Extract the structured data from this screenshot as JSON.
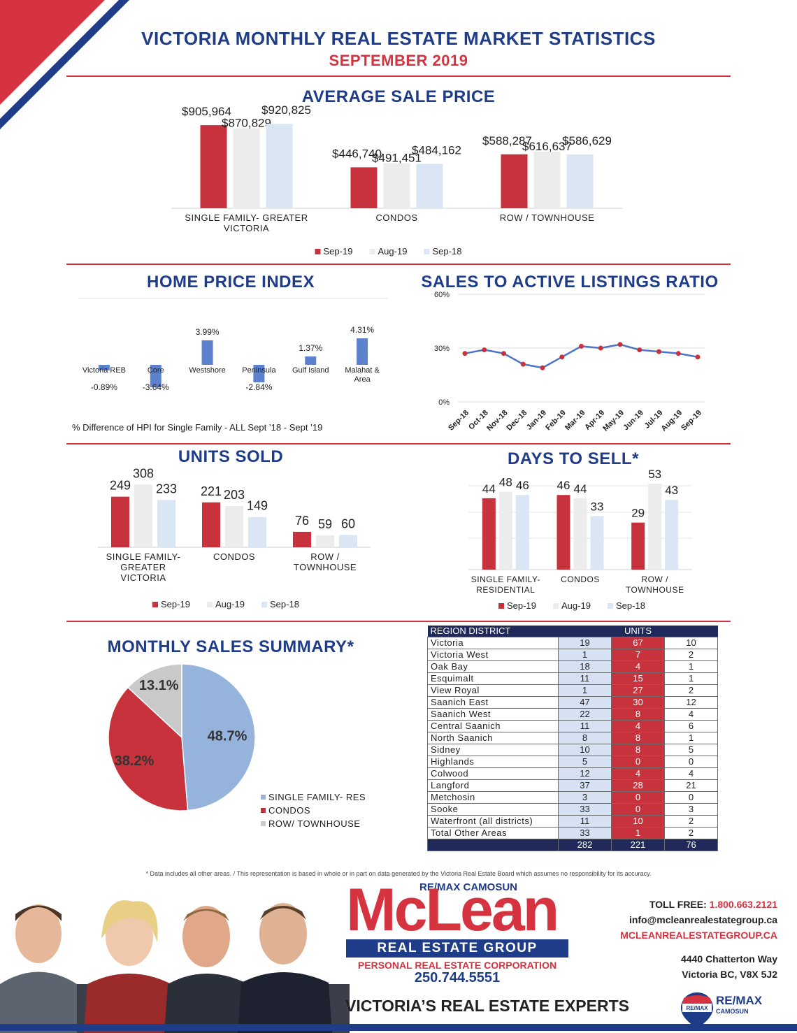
{
  "colors": {
    "navy": "#1f3c88",
    "red": "#d4333f",
    "sep19": "#c8323c",
    "aug19": "#ececec",
    "sep18": "#dbe6f5",
    "blue": "#4a74c9",
    "pie_blue": "#95b3db",
    "pie_red": "#c8323c",
    "pie_gray": "#c9c9c9"
  },
  "header": {
    "title": "VICTORIA MONTHLY REAL ESTATE MARKET STATISTICS",
    "subtitle": "SEPTEMBER 2019"
  },
  "avg_price": {
    "title": "AVERAGE SALE PRICE",
    "chart_data": {
      "type": "bar",
      "categories": [
        "SINGLE FAMILY- GREATER VICTORIA",
        "CONDOS",
        "ROW  / TOWNHOUSE"
      ],
      "category_lines": [
        [
          "SINGLE FAMILY- GREATER",
          "VICTORIA"
        ],
        [
          "CONDOS"
        ],
        [
          "ROW  / TOWNHOUSE"
        ]
      ],
      "series": [
        {
          "name": "Sep-19",
          "values": [
            905964,
            446740,
            588287
          ],
          "labels": [
            "$905,964",
            "$446,740",
            "$588,287"
          ]
        },
        {
          "name": "Aug-19",
          "values": [
            870829,
            491451,
            616637
          ],
          "labels": [
            "$870,829",
            "$491,451",
            "$616,637"
          ]
        },
        {
          "name": "Sep-18",
          "values": [
            920825,
            484162,
            586629
          ],
          "labels": [
            "$920,825",
            "$484,162",
            "$586,629"
          ]
        }
      ]
    }
  },
  "hpi": {
    "title": "HOME PRICE INDEX",
    "footer": "% Difference of HPI for Single Family - ALL Sept ’18 - Sept ’19",
    "chart_data": {
      "type": "bar",
      "categories": [
        "Victoria REB",
        "Core",
        "Westshore",
        "Peninsula",
        "Gulf Island",
        "Malahat & Area"
      ],
      "category_lines": [
        [
          "Victoria REB"
        ],
        [
          "Core"
        ],
        [
          "Westshore"
        ],
        [
          "Peninsula"
        ],
        [
          "Gulf Island"
        ],
        [
          "Malahat &",
          "Area"
        ]
      ],
      "values": [
        -0.89,
        -3.64,
        3.99,
        -2.84,
        1.37,
        4.31
      ],
      "labels": [
        "-0.89%",
        "-3.64%",
        "3.99%",
        "-2.84%",
        "1.37%",
        "4.31%"
      ]
    }
  },
  "ratio": {
    "title": "SALES TO ACTIVE LISTINGS RATIO",
    "chart_data": {
      "type": "line",
      "categories": [
        "Sep-18",
        "Oct-18",
        "Nov-18",
        "Dec-18",
        "Jan-19",
        "Feb-19",
        "Mar-19",
        "Apr-19",
        "May-19",
        "Jun-19",
        "Jul-19",
        "Aug-19",
        "Sep-19"
      ],
      "values": [
        27,
        29,
        27,
        21,
        19,
        25,
        31,
        30,
        32,
        29,
        28,
        27,
        25
      ],
      "ylim": [
        0,
        60
      ],
      "yticks": [
        0,
        30,
        60
      ],
      "ytick_labels": [
        "0%",
        "30%",
        "60%"
      ]
    }
  },
  "units_sold": {
    "title": "UNITS SOLD",
    "chart_data": {
      "type": "bar",
      "categories": [
        "SINGLE FAMILY- GREATER VICTORIA",
        "CONDOS",
        "ROW / TOWNHOUSE"
      ],
      "category_lines": [
        [
          "SINGLE FAMILY-",
          "GREATER",
          "VICTORIA"
        ],
        [
          "CONDOS"
        ],
        [
          "ROW /",
          "TOWNHOUSE"
        ]
      ],
      "series": [
        {
          "name": "Sep-19",
          "values": [
            249,
            221,
            76
          ]
        },
        {
          "name": "Aug-19",
          "values": [
            308,
            203,
            59
          ]
        },
        {
          "name": "Sep-18",
          "values": [
            233,
            149,
            60
          ]
        }
      ]
    }
  },
  "days_to_sell": {
    "title": "DAYS TO SELL*",
    "chart_data": {
      "type": "bar",
      "categories": [
        "SINGLE FAMILY- RESIDENTIAL",
        "CONDOS",
        "ROW / TOWNHOUSE"
      ],
      "category_lines": [
        [
          "SINGLE FAMILY-",
          "RESIDENTIAL"
        ],
        [
          "CONDOS"
        ],
        [
          "ROW /",
          "TOWNHOUSE"
        ]
      ],
      "series": [
        {
          "name": "Sep-19",
          "values": [
            44,
            46,
            29
          ]
        },
        {
          "name": "Aug-19",
          "values": [
            48,
            44,
            53
          ]
        },
        {
          "name": "Sep-18",
          "values": [
            46,
            33,
            43
          ]
        }
      ]
    }
  },
  "summary": {
    "title": "MONTHLY SALES SUMMARY*",
    "chart_data": {
      "type": "pie",
      "labels": [
        "SINGLE FAMILY- RES",
        "CONDOS",
        "ROW/ TOWNHOUSE"
      ],
      "values": [
        48.7,
        38.2,
        13.1
      ],
      "value_labels": [
        "48.7%",
        "38.2%",
        "13.1%"
      ]
    }
  },
  "region_table": {
    "header": [
      "REGION DISTRICT",
      "UNITS"
    ],
    "rows": [
      [
        "Victoria",
        "19",
        "67",
        "10"
      ],
      [
        "Victoria West",
        "1",
        "7",
        "2"
      ],
      [
        "Oak Bay",
        "18",
        "4",
        "1"
      ],
      [
        "Esquimalt",
        "11",
        "15",
        "1"
      ],
      [
        "View Royal",
        "1",
        "27",
        "2"
      ],
      [
        "Saanich East",
        "47",
        "30",
        "12"
      ],
      [
        "Saanich West",
        "22",
        "8",
        "4"
      ],
      [
        "Central Saanich",
        "11",
        "4",
        "6"
      ],
      [
        "North Saanich",
        "8",
        "8",
        "1"
      ],
      [
        "Sidney",
        "10",
        "8",
        "5"
      ],
      [
        "Highlands",
        "5",
        "0",
        "0"
      ],
      [
        "Colwood",
        "12",
        "4",
        "4"
      ],
      [
        "Langford",
        "37",
        "28",
        "21"
      ],
      [
        "Metchosin",
        "3",
        "0",
        "0"
      ],
      [
        "Sooke",
        "33",
        "0",
        "3"
      ],
      [
        "Waterfront (all districts)",
        "11",
        "10",
        "2"
      ],
      [
        "Total Other Areas",
        "33",
        "1",
        "2"
      ]
    ],
    "totals": [
      "",
      "282",
      "221",
      "76"
    ]
  },
  "footnote": "* Data includes all other areas.  /  This representation is based in whole or in part on data generated by the Victoria Real Estate Board which assumes no responsibility for its accuracy.",
  "footer": {
    "brand_top": "RE/MAX CAMOSUN",
    "brand_name": "McLean",
    "brand_group": "REAL ESTATE GROUP",
    "brand_corp": "PERSONAL REAL ESTATE CORPORATION",
    "phone": "250.744.5551",
    "tagline": "VICTORIA’S REAL ESTATE EXPERTS",
    "toll_free_label": "TOLL FREE:",
    "toll_free": "1.800.663.2121",
    "email": "info@mcleanrealestategroup.ca",
    "website": "MCLEANREALESTATEGROUP.CA",
    "address1": "4440 Chatterton Way",
    "address2": "Victoria BC, V8X 5J2",
    "remax_logo": "RE/MAX",
    "remax_name": "RE/MAX",
    "remax_sub": "CAMOSUN"
  }
}
